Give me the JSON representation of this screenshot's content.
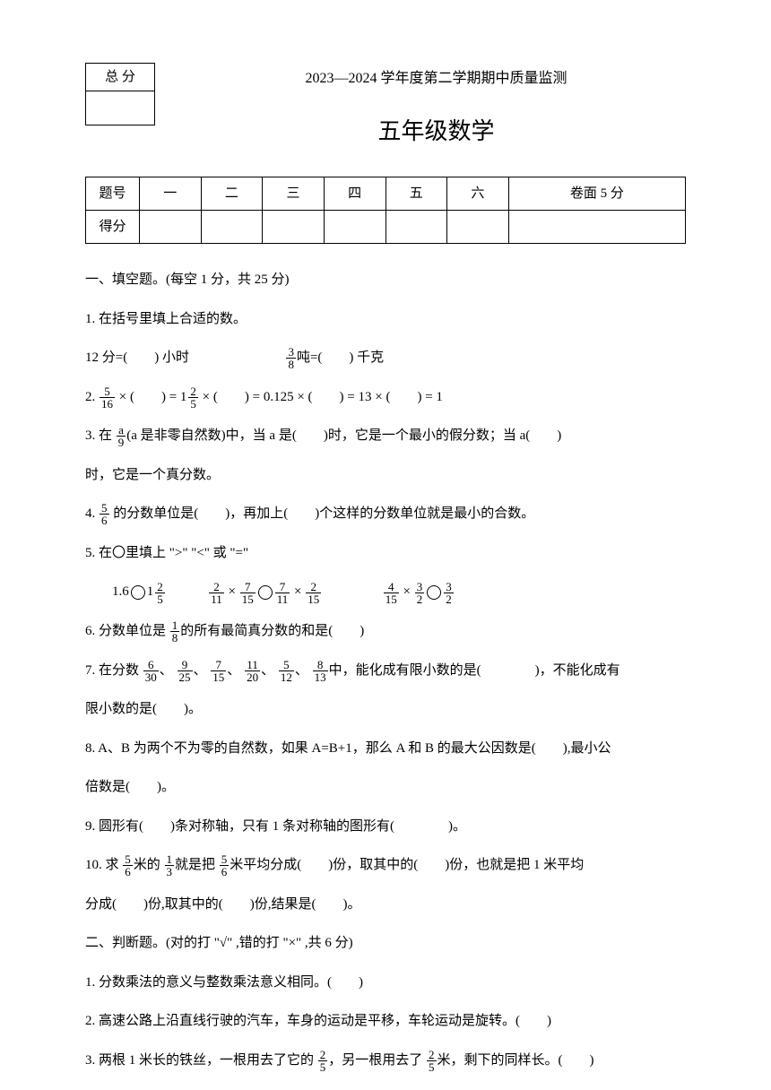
{
  "scoreBox": {
    "label": "总 分"
  },
  "header": {
    "title": "2023—2024 学年度第二学期期中质量监测",
    "subtitle": "五年级数学"
  },
  "scoreTable": {
    "row1": [
      "题号",
      "一",
      "二",
      "三",
      "四",
      "五",
      "六",
      "卷面 5 分"
    ],
    "row2Label": "得分"
  },
  "sections": {
    "s1_title": "一、填空题。(每空 1 分，共 25 分)",
    "q1_1": "1. 在括号里填上合适的数。",
    "q1_1a": "12 分=(　　) 小时",
    "q1_1b": "吨=(　　) 千克",
    "q2_prefix": "2.",
    "q2_a": " × (　　) = ",
    "q2_b": " × (　　) = 0.125 × (　　) = 13 × (　　) = 1",
    "q3_a": "3.  在 ",
    "q3_b": "(a 是非零自然数)中，当 a 是(　　)时，它是一个最小的假分数；当 a(　　)",
    "q3_c": "时，它是一个真分数。",
    "q4_a": "4. ",
    "q4_b": " 的分数单位是(　　)，再加上(　　)个这样的分数单位就是最小的合数。",
    "q5": "5. 在〇里填上 \">\" \"<\" 或 \"=\"",
    "q5_a1": "1.6",
    "q6_a": "6. 分数单位是 ",
    "q6_b": "的所有最简真分数的和是(　　)",
    "q7_a": "7. 在分数 ",
    "q7_b": "中，能化成有限小数的是(　　　　)，不能化成有",
    "q7_c": "限小数的是(　　)。",
    "q8_a": "8. A、B 为两个不为零的自然数，如果 A=B+1，那么 A 和 B 的最大公因数是(　　),最小公",
    "q8_b": "倍数是(　　)。",
    "q9": "9. 圆形有(　　)条对称轴，只有 1 条对称轴的图形有(　　　　)。",
    "q10_a": "10. 求 ",
    "q10_b": "米的 ",
    "q10_c": "就是把 ",
    "q10_d": "米平均分成(　　)份，取其中的(　　)份，也就是把 1 米平均",
    "q10_e": "分成(　　)份,取其中的(　　)份,结果是(　　)。",
    "s2_title": "二、判断题。(对的打 \"√\" ,错的打 \"×\" ,共 6 分)",
    "q2_1": "1. 分数乘法的意义与整数乘法意义相同。(　　)",
    "q2_2": "2. 高速公路上沿直线行驶的汽车，车身的运动是平移，车轮运动是旋转。(　　)",
    "q2_3a": "3.  两根 1 米长的铁丝，一根用去了它的 ",
    "q2_3b": "，另一根用去了 ",
    "q2_3c": "米，剩下的同样长。(　　)"
  },
  "fractions": {
    "f3_8": {
      "n": "3",
      "d": "8"
    },
    "f5_16": {
      "n": "5",
      "d": "16"
    },
    "f1_2_5": {
      "w": "1",
      "n": "2",
      "d": "5"
    },
    "fa_9": {
      "n": "a",
      "d": "9"
    },
    "f5_6": {
      "n": "5",
      "d": "6"
    },
    "f1_2_5b": {
      "w": "1",
      "n": "2",
      "d": "5"
    },
    "f2_11": {
      "n": "2",
      "d": "11"
    },
    "f7_15": {
      "n": "7",
      "d": "15"
    },
    "f7_11": {
      "n": "7",
      "d": "11"
    },
    "f2_15": {
      "n": "2",
      "d": "15"
    },
    "f4_15": {
      "n": "4",
      "d": "15"
    },
    "f3_2": {
      "n": "3",
      "d": "2"
    },
    "f3_2b": {
      "n": "3",
      "d": "2"
    },
    "f1_8": {
      "n": "1",
      "d": "8"
    },
    "f6_30": {
      "n": "6",
      "d": "30"
    },
    "f9_25": {
      "n": "9",
      "d": "25"
    },
    "f7_15b": {
      "n": "7",
      "d": "15"
    },
    "f11_20": {
      "n": "11",
      "d": "20"
    },
    "f5_12": {
      "n": "5",
      "d": "12"
    },
    "f8_13": {
      "n": "8",
      "d": "13"
    },
    "f5_6b": {
      "n": "5",
      "d": "6"
    },
    "f1_3": {
      "n": "1",
      "d": "3"
    },
    "f5_6c": {
      "n": "5",
      "d": "6"
    },
    "f2_5": {
      "n": "2",
      "d": "5"
    },
    "f2_5b": {
      "n": "2",
      "d": "5"
    }
  }
}
